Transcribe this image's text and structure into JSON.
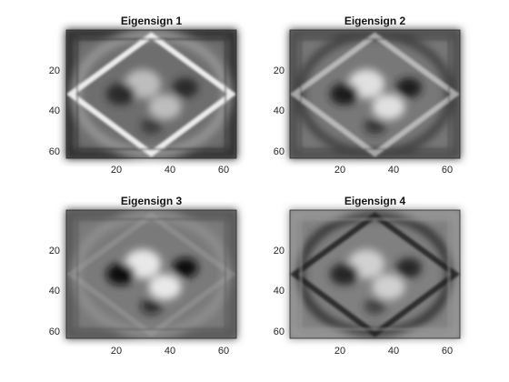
{
  "figure": {
    "panels": [
      {
        "title": "Eigensign 1",
        "xticks": [
          "20",
          "40",
          "60"
        ],
        "yticks": [
          "20",
          "40",
          "60"
        ],
        "style": {
          "bg": "#6e6e6e",
          "frame": "#2c2c2c",
          "diamond": "#f2f2f2",
          "diamondOpacity": 0.95,
          "ellipse": "#9a9a9a",
          "blobLight": "#bdbdbd",
          "blobDark": "#2a2a2a"
        }
      },
      {
        "title": "Eigensign 2",
        "xticks": [
          "20",
          "40",
          "60"
        ],
        "yticks": [
          "20",
          "40",
          "60"
        ],
        "style": {
          "bg": "#787878",
          "frame": "#4a4a4a",
          "diamond": "#d8d8d8",
          "diamondOpacity": 0.65,
          "ellipse": "#404040",
          "blobLight": "#e0e0e0",
          "blobDark": "#1e1e1e"
        }
      },
      {
        "title": "Eigensign 3",
        "xticks": [
          "20",
          "40",
          "60"
        ],
        "yticks": [
          "20",
          "40",
          "60"
        ],
        "style": {
          "bg": "#7a7a7a",
          "frame": "#555555",
          "diamond": "#a8a8a8",
          "diamondOpacity": 0.35,
          "ellipse": "#909090",
          "blobLight": "#e8e8e8",
          "blobDark": "#101010"
        }
      },
      {
        "title": "Eigensign 4",
        "xticks": [
          "20",
          "40",
          "60"
        ],
        "yticks": [
          "20",
          "40",
          "60"
        ],
        "style": {
          "bg": "#808080",
          "frame": "#9a9a9a",
          "diamond": "#1c1c1c",
          "diamondOpacity": 0.85,
          "ellipse": "#2e2e2e",
          "blobLight": "#d0d0d0",
          "blobDark": "#262626"
        }
      }
    ]
  }
}
